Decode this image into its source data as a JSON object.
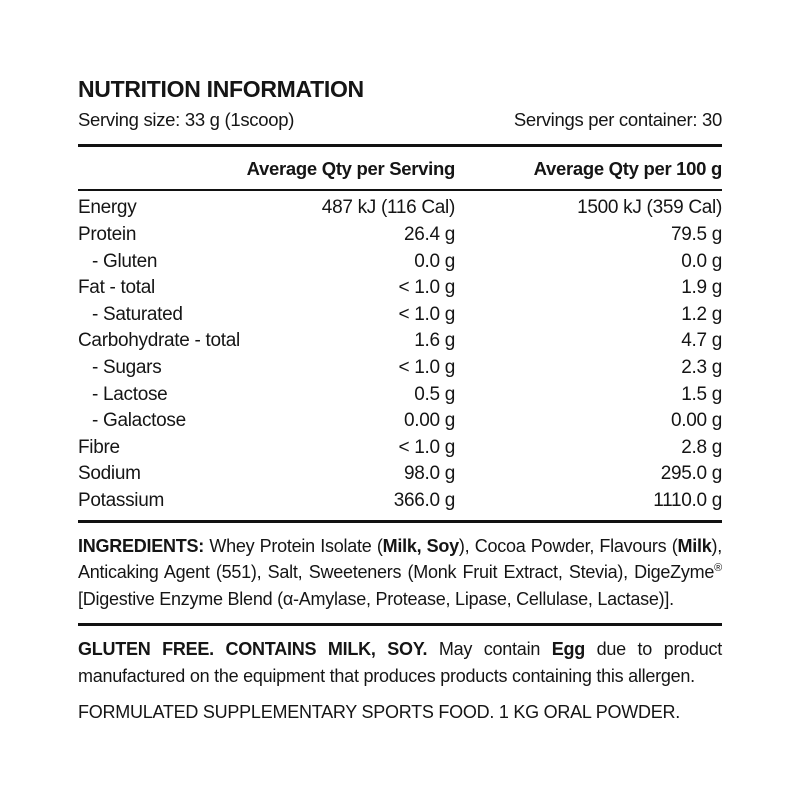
{
  "colors": {
    "text": "#151515",
    "rule": "#121212",
    "background": "#ffffff"
  },
  "label": {
    "title": "NUTRITION INFORMATION",
    "serving_size": "Serving size: 33 g (1scoop)",
    "servings_per_container": "Servings per container: 30",
    "columns": {
      "per_serving": "Average Qty per Serving",
      "per_100g": "Average Qty per 100 g"
    },
    "rows": [
      {
        "label": "Energy",
        "indent": false,
        "per_serving": "487 kJ (116 Cal)",
        "per_100g": "1500 kJ (359 Cal)"
      },
      {
        "label": "Protein",
        "indent": false,
        "per_serving": "26.4 g",
        "per_100g": "79.5 g"
      },
      {
        "label": "- Gluten",
        "indent": true,
        "per_serving": "0.0 g",
        "per_100g": "0.0 g"
      },
      {
        "label": "Fat - total",
        "indent": false,
        "per_serving": "< 1.0 g",
        "per_100g": "1.9 g"
      },
      {
        "label": "- Saturated",
        "indent": true,
        "per_serving": "< 1.0 g",
        "per_100g": "1.2 g"
      },
      {
        "label": "Carbohydrate - total",
        "indent": false,
        "per_serving": "1.6 g",
        "per_100g": "4.7 g"
      },
      {
        "label": "- Sugars",
        "indent": true,
        "per_serving": "< 1.0 g",
        "per_100g": "2.3 g"
      },
      {
        "label": "- Lactose",
        "indent": true,
        "per_serving": "0.5 g",
        "per_100g": "1.5 g"
      },
      {
        "label": "- Galactose",
        "indent": true,
        "per_serving": "0.00 g",
        "per_100g": "0.00 g"
      },
      {
        "label": "Fibre",
        "indent": false,
        "per_serving": "< 1.0 g",
        "per_100g": "2.8 g"
      },
      {
        "label": "Sodium",
        "indent": false,
        "per_serving": "98.0 g",
        "per_100g": "295.0 g"
      },
      {
        "label": "Potassium",
        "indent": false,
        "per_serving": "366.0 g",
        "per_100g": "1110.0 g"
      }
    ],
    "ingredients": {
      "seg0": "INGREDIENTS: ",
      "seg1": "Whey Protein Isolate (",
      "seg2": "Milk, Soy",
      "seg3": "), Cocoa Powder, Flavours (",
      "seg4": "Milk",
      "seg5": "), Anticaking Agent (551), Salt, Sweeteners (Monk Fruit Extract, Stevia), DigeZyme",
      "seg6": "®",
      "seg7": " [Digestive Enzyme Blend (α-Amylase, Protease, Lipase, Cellulase, Lactase)]."
    },
    "allergen": {
      "seg0": "GLUTEN FREE. CONTAINS MILK, SOY. ",
      "seg1": "May contain ",
      "seg2": "Egg",
      "seg3": " due to product manufactured on the equipment that produces products containing this allergen."
    },
    "footer": "FORMULATED SUPPLEMENTARY SPORTS FOOD. 1 KG ORAL POWDER."
  }
}
